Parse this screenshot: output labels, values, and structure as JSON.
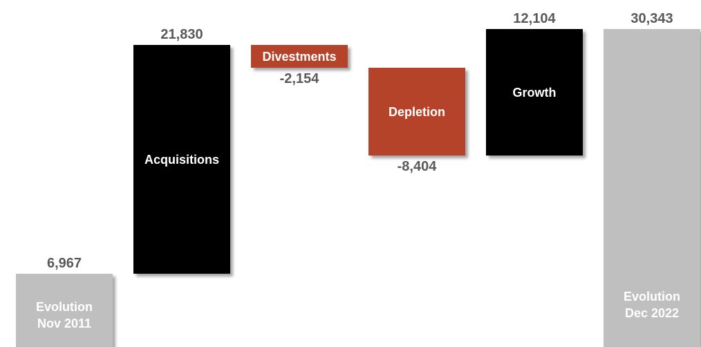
{
  "chart_data": {
    "type": "waterfall",
    "categories": [
      "Evolution\nNov 2011",
      "Acquisitions",
      "Divestments",
      "Depletion",
      "Growth",
      "Evolution\nDec 2022"
    ],
    "values": [
      6967,
      21830,
      -2154,
      -8404,
      12104,
      30343
    ],
    "value_labels": [
      "6,967",
      "21,830",
      "-2,154",
      "-8,404",
      "12,104",
      "30,343"
    ],
    "is_total": [
      true,
      false,
      false,
      false,
      false,
      true
    ],
    "colors": [
      "#bfbfbf",
      "#000000",
      "#b5432a",
      "#b5432a",
      "#000000",
      "#bfbfbf"
    ]
  }
}
